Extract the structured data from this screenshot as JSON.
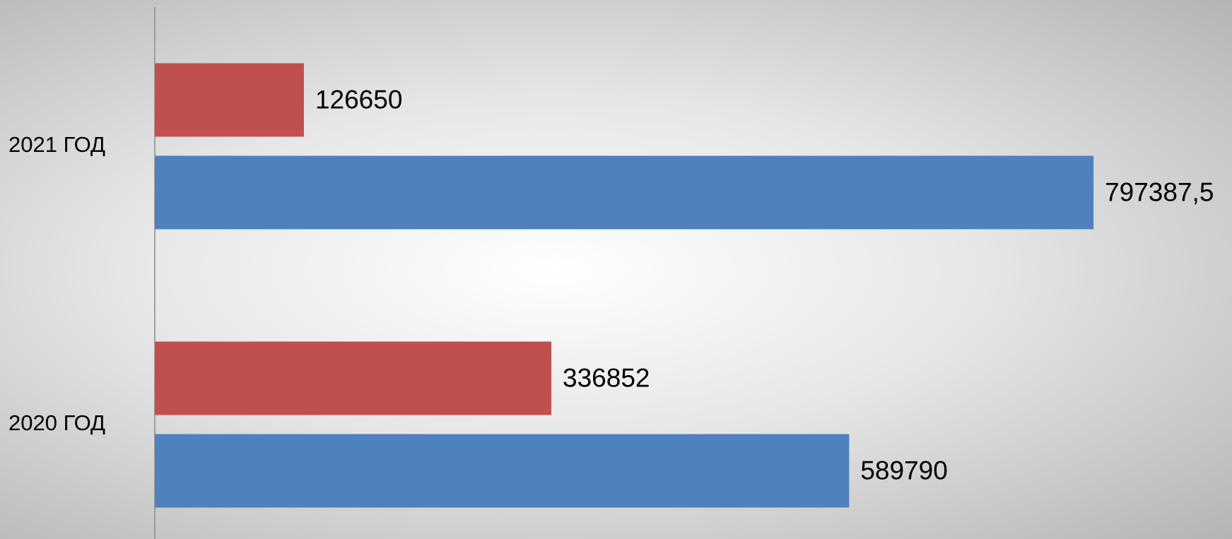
{
  "chart_data": {
    "type": "barh",
    "categories": [
      "2020 ГОД",
      "2021 ГОД"
    ],
    "series": [
      {
        "color": "#4f81bd",
        "values": [
          589790,
          797387.5
        ],
        "value_labels": [
          "589790",
          "797387,5"
        ]
      },
      {
        "color": "#c0504d",
        "values": [
          336852,
          126650
        ]
      }
    ],
    "xlim": [
      0,
      900000
    ]
  }
}
